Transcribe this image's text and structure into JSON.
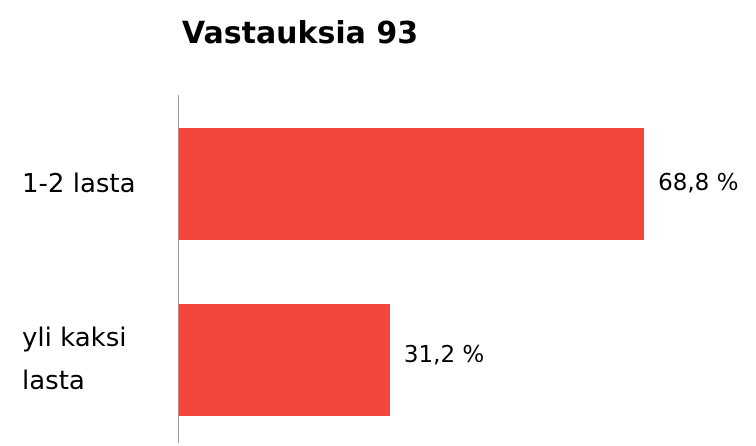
{
  "chart_data": {
    "type": "bar",
    "orientation": "horizontal",
    "title": "Vastauksia 93",
    "categories": [
      "1-2 lasta",
      "yli kaksi lasta"
    ],
    "values": [
      68.8,
      31.2
    ],
    "value_labels": [
      "68,8 %",
      "31,2 %"
    ],
    "color": "#f2473a"
  }
}
